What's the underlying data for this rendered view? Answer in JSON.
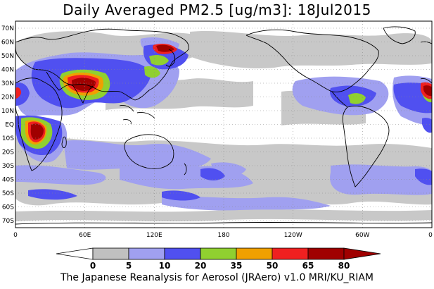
{
  "map": {
    "title": "Daily Averaged PM2.5 [ug/m3]: 18Jul2015",
    "footer": "The Japanese Reanalysis for Aerosol (JRAero) v1.0 MRI/KU_RIAM",
    "lat_labels": [
      "70N",
      "60N",
      "50N",
      "40N",
      "30N",
      "20N",
      "10N",
      "EQ",
      "10S",
      "20S",
      "30S",
      "40S",
      "50S",
      "60S",
      "70S"
    ],
    "lon_labels": [
      "0",
      "60E",
      "120E",
      "180",
      "120W",
      "60W",
      "0"
    ],
    "colorbar": {
      "thresholds": [
        "0",
        "5",
        "10",
        "20",
        "35",
        "50",
        "65",
        "80"
      ],
      "colors": [
        "#ffffff",
        "#c0c0c0",
        "#a0a0f0",
        "#5050f0",
        "#90d030",
        "#f0a000",
        "#f02020",
        "#a00000"
      ]
    },
    "projection": "equirectangular, 0 to 360 longitude, 75S to 75N"
  }
}
